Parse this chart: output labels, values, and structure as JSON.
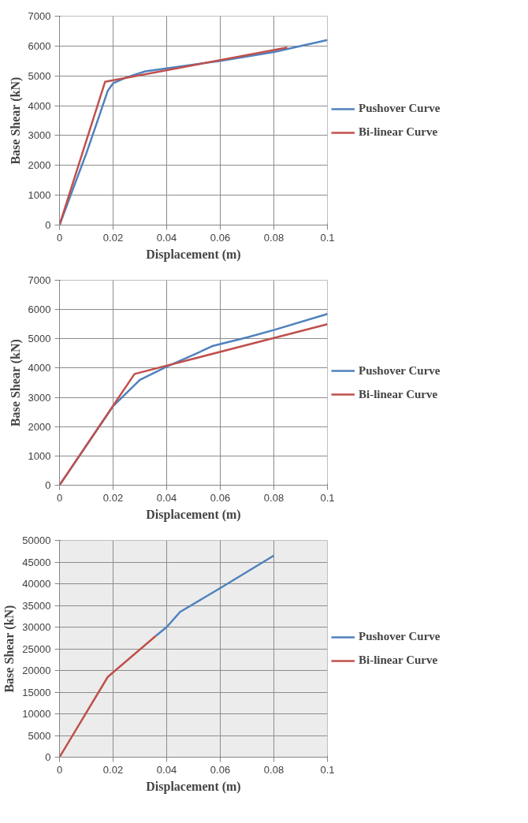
{
  "chart_data": [
    {
      "type": "line",
      "xlabel": "Displacement (m)",
      "ylabel": "Base Shear (kN)",
      "xlim": [
        0,
        0.1
      ],
      "ylim": [
        0,
        7000
      ],
      "xticks": [
        0,
        0.02,
        0.04,
        0.06,
        0.08,
        0.1
      ],
      "yticks": [
        0,
        1000,
        2000,
        3000,
        4000,
        5000,
        6000,
        7000
      ],
      "grid": true,
      "legend": "right",
      "series": [
        {
          "name": "Pushover Curve",
          "color": "#4f81bd",
          "x": [
            0,
            0.01,
            0.015,
            0.018,
            0.02,
            0.025,
            0.032,
            0.04,
            0.06,
            0.08,
            0.1
          ],
          "values": [
            0,
            2400,
            3700,
            4500,
            4750,
            4950,
            5150,
            5250,
            5500,
            5800,
            6200
          ]
        },
        {
          "name": "Bi-linear Curve",
          "color": "#c0504d",
          "x": [
            0,
            0.017,
            0.085
          ],
          "values": [
            0,
            4800,
            5950
          ]
        }
      ]
    },
    {
      "type": "line",
      "xlabel": "Displacement (m)",
      "ylabel": "Base Shear (kN)",
      "xlim": [
        0,
        0.1
      ],
      "ylim": [
        0,
        7000
      ],
      "xticks": [
        0,
        0.02,
        0.04,
        0.06,
        0.08,
        0.1
      ],
      "yticks": [
        0,
        1000,
        2000,
        3000,
        4000,
        5000,
        6000,
        7000
      ],
      "grid": true,
      "legend": "right",
      "series": [
        {
          "name": "Pushover Curve",
          "color": "#4f81bd",
          "x": [
            0,
            0.02,
            0.03,
            0.04,
            0.05,
            0.057,
            0.07,
            0.08,
            0.1
          ],
          "values": [
            0,
            2700,
            3600,
            4050,
            4450,
            4750,
            5050,
            5300,
            5850
          ]
        },
        {
          "name": "Bi-linear Curve",
          "color": "#c0504d",
          "x": [
            0,
            0.028,
            0.1
          ],
          "values": [
            0,
            3800,
            5500
          ]
        }
      ]
    },
    {
      "type": "line",
      "xlabel": "Displacement (m)",
      "ylabel": "Base Shear (kN)",
      "xlim": [
        0,
        0.1
      ],
      "ylim": [
        0,
        50000
      ],
      "xticks": [
        0,
        0.02,
        0.04,
        0.06,
        0.08,
        0.1
      ],
      "yticks": [
        0,
        5000,
        10000,
        15000,
        20000,
        25000,
        30000,
        35000,
        40000,
        45000,
        50000
      ],
      "grid": true,
      "legend": "right",
      "series": [
        {
          "name": "Pushover Curve",
          "color": "#4f81bd",
          "x": [
            0.036,
            0.04,
            0.045,
            0.06,
            0.08
          ],
          "values": [
            28000,
            30000,
            33500,
            39000,
            46500
          ]
        },
        {
          "name": "Bi-linear Curve",
          "color": "#c0504d",
          "x": [
            0,
            0.018,
            0.036
          ],
          "values": [
            0,
            18500,
            28000
          ]
        }
      ]
    }
  ]
}
